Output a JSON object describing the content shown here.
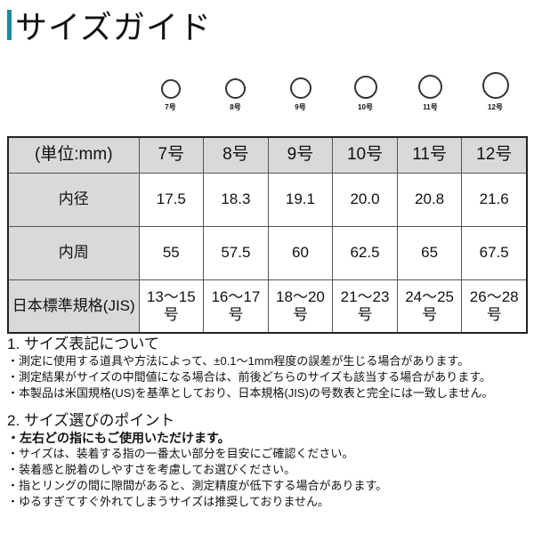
{
  "title": "サイズガイド",
  "accent_color": "#1e8a99",
  "rings": [
    {
      "label": "7号",
      "d": 22
    },
    {
      "label": "8号",
      "d": 23
    },
    {
      "label": "9号",
      "d": 24
    },
    {
      "label": "10号",
      "d": 26
    },
    {
      "label": "11号",
      "d": 27
    },
    {
      "label": "12号",
      "d": 30
    }
  ],
  "table": {
    "header": [
      "(単位:mm)",
      "7号",
      "8号",
      "9号",
      "10号",
      "11号",
      "12号"
    ],
    "rows": [
      [
        "内径",
        "17.5",
        "18.3",
        "19.1",
        "20.0",
        "20.8",
        "21.6"
      ],
      [
        "内周",
        "55",
        "57.5",
        "60",
        "62.5",
        "65",
        "67.5"
      ],
      [
        "日本標準規格(JIS)",
        "13〜15号",
        "16〜17号",
        "18〜20号",
        "21〜23号",
        "24〜25号",
        "26〜28号"
      ]
    ]
  },
  "notes": {
    "s1_title": "1. サイズ表記について",
    "s1": [
      "・測定に使用する道具や方法によって、±0.1〜1mm程度の誤差が生じる場合があります。",
      "・測定結果がサイズの中間値になる場合は、前後どちらのサイズも該当する場合があります。",
      "・本製品は米国規格(US)を基準としており、日本規格(JIS)の号数表と完全には一致しません。"
    ],
    "s2_title": "2. サイズ選びのポイント",
    "s2_bold": "・左右どの指にもご使用いただけます。",
    "s2": [
      "・サイズは、装着する指の一番太い部分を目安にご確認ください。",
      "・装着感と脱着のしやすさを考慮してお選びください。",
      "・指とリングの間に隙間があると、測定精度が低下する場合があります。",
      "・ゆるすぎてすぐ外れてしまうサイズは推奨しておりません。"
    ]
  }
}
